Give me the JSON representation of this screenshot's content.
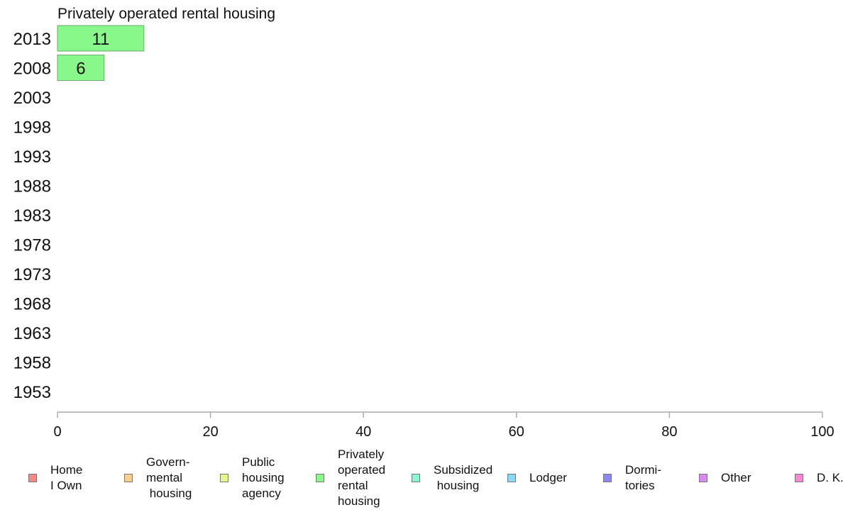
{
  "chart_data": {
    "type": "bar",
    "orientation": "horizontal",
    "title": "Privately operated rental housing",
    "categories": [
      "2013",
      "2008",
      "2003",
      "1998",
      "1993",
      "1988",
      "1983",
      "1978",
      "1973",
      "1968",
      "1963",
      "1958",
      "1953"
    ],
    "series": [
      {
        "name": "Privately operated rental housing",
        "color": "#88f88a",
        "values": [
          11.3,
          6.1,
          null,
          null,
          null,
          null,
          null,
          null,
          null,
          null,
          null,
          null,
          null
        ],
        "data_labels": [
          "11",
          "6",
          "",
          "",
          "",
          "",
          "",
          "",
          "",
          "",
          "",
          "",
          ""
        ]
      }
    ],
    "xlim": [
      0,
      100
    ],
    "xticks": [
      "0",
      "20",
      "40",
      "60",
      "80",
      "100"
    ],
    "grid": false,
    "legend_position": "bottom",
    "legend": [
      {
        "label": "Home\nI Own",
        "color": "#f88888"
      },
      {
        "label": "Govern-\nmental\n housing",
        "color": "#fad088"
      },
      {
        "label": "Public\nhousing\nagency",
        "color": "#e2f888"
      },
      {
        "label": "Privately\noperated\nrental\nhousing",
        "color": "#88f88a"
      },
      {
        "label": "Subsidized\n housing",
        "color": "#88f8d2"
      },
      {
        "label": "Lodger",
        "color": "#88d8f8"
      },
      {
        "label": "Dormi-\ntories",
        "color": "#8888f8"
      },
      {
        "label": "Other",
        "color": "#d888f8"
      },
      {
        "label": "D. K.",
        "color": "#f888d2"
      }
    ]
  }
}
